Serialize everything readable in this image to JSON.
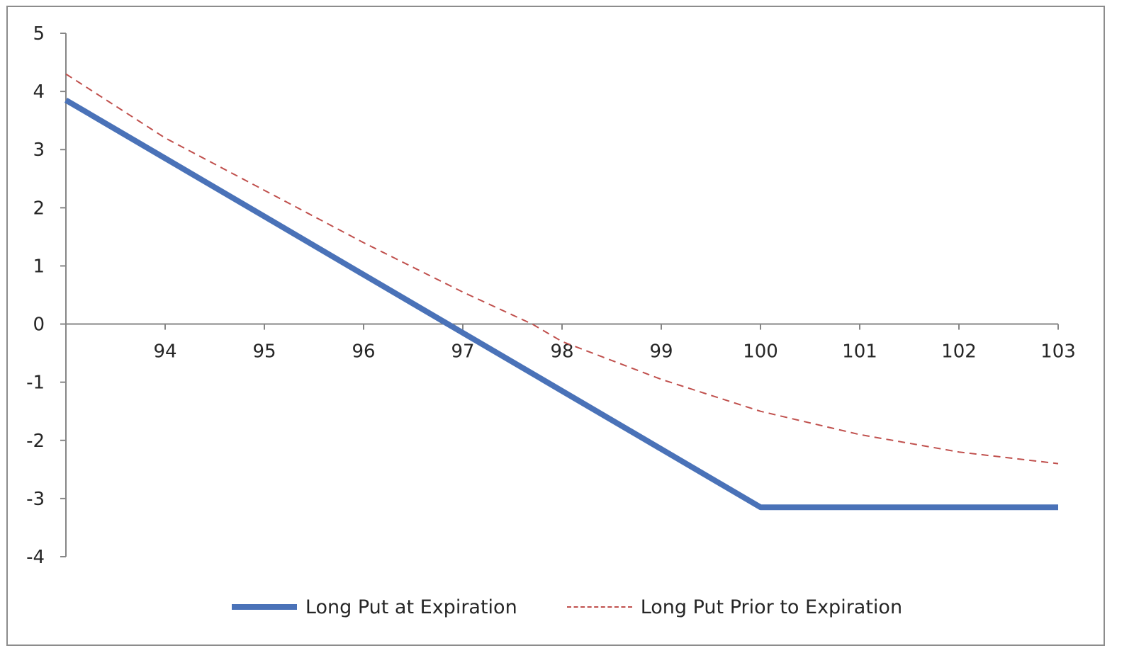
{
  "chart_data": {
    "type": "line",
    "title": "",
    "xlabel": "",
    "ylabel": "",
    "xlim": [
      93,
      103
    ],
    "ylim": [
      -4,
      5
    ],
    "x_ticks": [
      94,
      95,
      96,
      97,
      98,
      99,
      100,
      101,
      102,
      103
    ],
    "y_ticks": [
      5,
      4,
      3,
      2,
      1,
      0,
      -1,
      -2,
      -3,
      -4
    ],
    "grid": false,
    "legend_position": "bottom",
    "series": [
      {
        "name": "Long Put at Expiration",
        "color": "#4a72b8",
        "style": "solid",
        "x": [
          93,
          94,
          95,
          96,
          97,
          98,
          99,
          100,
          101,
          102,
          103
        ],
        "y": [
          3.85,
          2.85,
          1.85,
          0.85,
          -0.15,
          -1.15,
          -2.15,
          -3.15,
          -3.15,
          -3.15,
          -3.15
        ]
      },
      {
        "name": "Long Put Prior to Expiration",
        "color": "#c0504d",
        "style": "dashed",
        "x": [
          93,
          94,
          95,
          96,
          97,
          97.7,
          98,
          99,
          100,
          101,
          102,
          103
        ],
        "y": [
          4.3,
          3.2,
          2.3,
          1.4,
          0.55,
          0.0,
          -0.3,
          -0.95,
          -1.5,
          -1.9,
          -2.2,
          -2.4
        ]
      }
    ]
  }
}
